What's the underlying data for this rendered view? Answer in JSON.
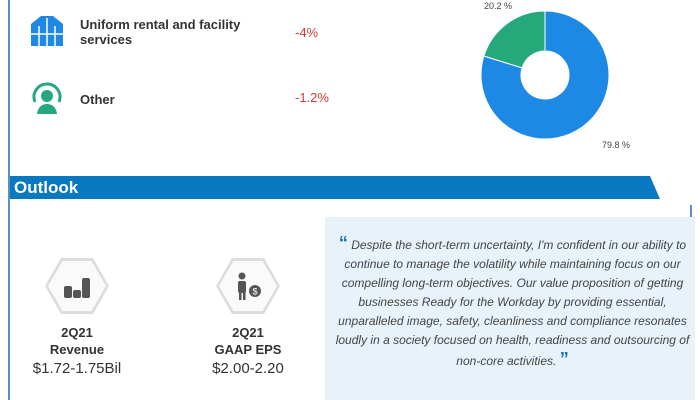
{
  "segments": [
    {
      "label": "Uniform rental and facility services",
      "change": "-4%",
      "icon": "jacket-icon"
    },
    {
      "label": "Other",
      "change": "-1.2%",
      "icon": "person-cycle-icon"
    }
  ],
  "donut": {
    "slices": [
      {
        "value": 79.8,
        "label": "79.8 %",
        "color": "#1e88e5"
      },
      {
        "value": 20.2,
        "label": "20.2 %",
        "color": "#26a97a"
      }
    ]
  },
  "outlook": {
    "title": "Outlook",
    "kpis": [
      {
        "period": "2Q21",
        "metric": "Revenue",
        "value": "$1.72-1.75Bil",
        "icon": "coin-stacks-icon"
      },
      {
        "period": "2Q21",
        "metric": "GAAP EPS",
        "value": "$2.00-2.20",
        "icon": "person-dollar-icon"
      }
    ],
    "quote": "Despite the short-term uncertainty, I'm confident in our ability to continue to manage the volatility while maintaining focus on our compelling long-term objectives. Our value proposition of getting businesses Ready for the Workday by providing essential, unparalleled image, safety, cleanliness and compliance resonates loudly in a society focused on health, readiness and outsourcing of non-core activities.",
    "open_quote": "“",
    "close_quote": "”"
  }
}
